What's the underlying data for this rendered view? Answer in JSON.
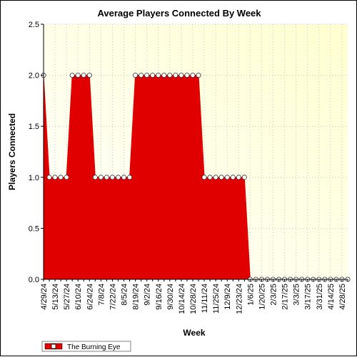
{
  "chart_data": {
    "type": "area",
    "title": "Average Players Connected By Week",
    "xlabel": "Week",
    "ylabel": "Players Connected",
    "ylim": [
      0,
      2.5
    ],
    "yticks": [
      "0.0",
      "0.5",
      "1.0",
      "1.5",
      "2.0",
      "2.5"
    ],
    "x_tick_labels": [
      "4/29/24",
      "5/13/24",
      "5/27/24",
      "6/10/24",
      "6/24/24",
      "7/8/24",
      "7/22/24",
      "8/5/24",
      "8/19/24",
      "9/2/24",
      "9/16/24",
      "9/30/24",
      "10/14/24",
      "10/28/24",
      "11/11/24",
      "11/25/24",
      "12/9/24",
      "12/23/24",
      "1/6/25",
      "1/20/25",
      "2/3/25",
      "2/17/25",
      "3/3/25",
      "3/17/25",
      "3/31/25",
      "4/14/25",
      "4/28/25"
    ],
    "grid": true,
    "legend_position": "bottom-left",
    "plot_background": [
      "#ffffff",
      "#ffffd0"
    ],
    "series": [
      {
        "name": "The Burning Eye",
        "color": "#e00000",
        "x": [
          "4/29/24",
          "5/6/24",
          "5/13/24",
          "5/20/24",
          "5/27/24",
          "6/3/24",
          "6/10/24",
          "6/17/24",
          "6/24/24",
          "7/1/24",
          "7/8/24",
          "7/15/24",
          "7/22/24",
          "7/29/24",
          "8/5/24",
          "8/12/24",
          "8/19/24",
          "8/26/24",
          "9/2/24",
          "9/9/24",
          "9/16/24",
          "9/23/24",
          "9/30/24",
          "10/7/24",
          "10/14/24",
          "10/21/24",
          "10/28/24",
          "11/4/24",
          "11/11/24",
          "11/18/24",
          "11/25/24",
          "12/2/24",
          "12/9/24",
          "12/16/24",
          "12/23/24",
          "12/30/24",
          "1/6/25",
          "1/13/25",
          "1/20/25",
          "1/27/25",
          "2/3/25",
          "2/10/25",
          "2/17/25",
          "2/24/25",
          "3/3/25",
          "3/10/25",
          "3/17/25",
          "3/24/25",
          "3/31/25",
          "4/7/25",
          "4/14/25",
          "4/21/25",
          "4/28/25",
          "5/5/25"
        ],
        "values": [
          2,
          1,
          1,
          1,
          1,
          2,
          2,
          2,
          2,
          1,
          1,
          1,
          1,
          1,
          1,
          1,
          2,
          2,
          2,
          2,
          2,
          2,
          2,
          2,
          2,
          2,
          2,
          2,
          1,
          1,
          1,
          1,
          1,
          1,
          1,
          1,
          0,
          0,
          0,
          0,
          0,
          0,
          0,
          0,
          0,
          0,
          0,
          0,
          0,
          0,
          0,
          0,
          0,
          0
        ]
      }
    ]
  }
}
